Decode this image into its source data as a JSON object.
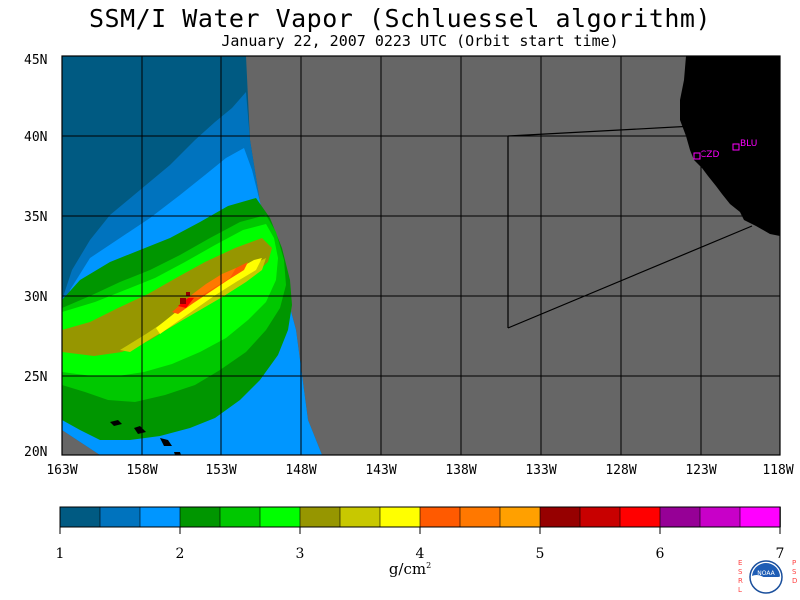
{
  "title": "SSM/I Water Vapor (Schluessel algorithm)",
  "subtitle": "January 22, 2007  0223 UTC  (Orbit start time)",
  "map": {
    "lat_labels": [
      "45N",
      "40N",
      "35N",
      "30N",
      "25N",
      "20N"
    ],
    "lon_labels": [
      "163W",
      "158W",
      "153W",
      "148W",
      "143W",
      "138W",
      "133W",
      "128W",
      "123W",
      "118W"
    ],
    "stations": [
      {
        "name": "CZD",
        "color": "#ff00ff"
      },
      {
        "name": "BLU",
        "color": "#ff00ff"
      }
    ],
    "colors": {
      "no_data": "#666666",
      "land": "#000000",
      "box_line": "#000000",
      "grid": "#000000"
    }
  },
  "colorbar": {
    "tick_labels": [
      "1",
      "2",
      "3",
      "4",
      "5",
      "6",
      "7"
    ],
    "unit_base": "g/cm",
    "unit_exp": "2",
    "colors": [
      "#005a82",
      "#0073be",
      "#0096ff",
      "#009600",
      "#00c800",
      "#00ff00",
      "#969600",
      "#c8c800",
      "#ffff00",
      "#ff5a00",
      "#ff7800",
      "#ffa000",
      "#960000",
      "#c80000",
      "#ff0000",
      "#960096",
      "#c800c8",
      "#ff00ff"
    ]
  },
  "logo": {
    "left_letters": "ESRL",
    "right_letters": "PSD",
    "center_text": "NOAA"
  }
}
